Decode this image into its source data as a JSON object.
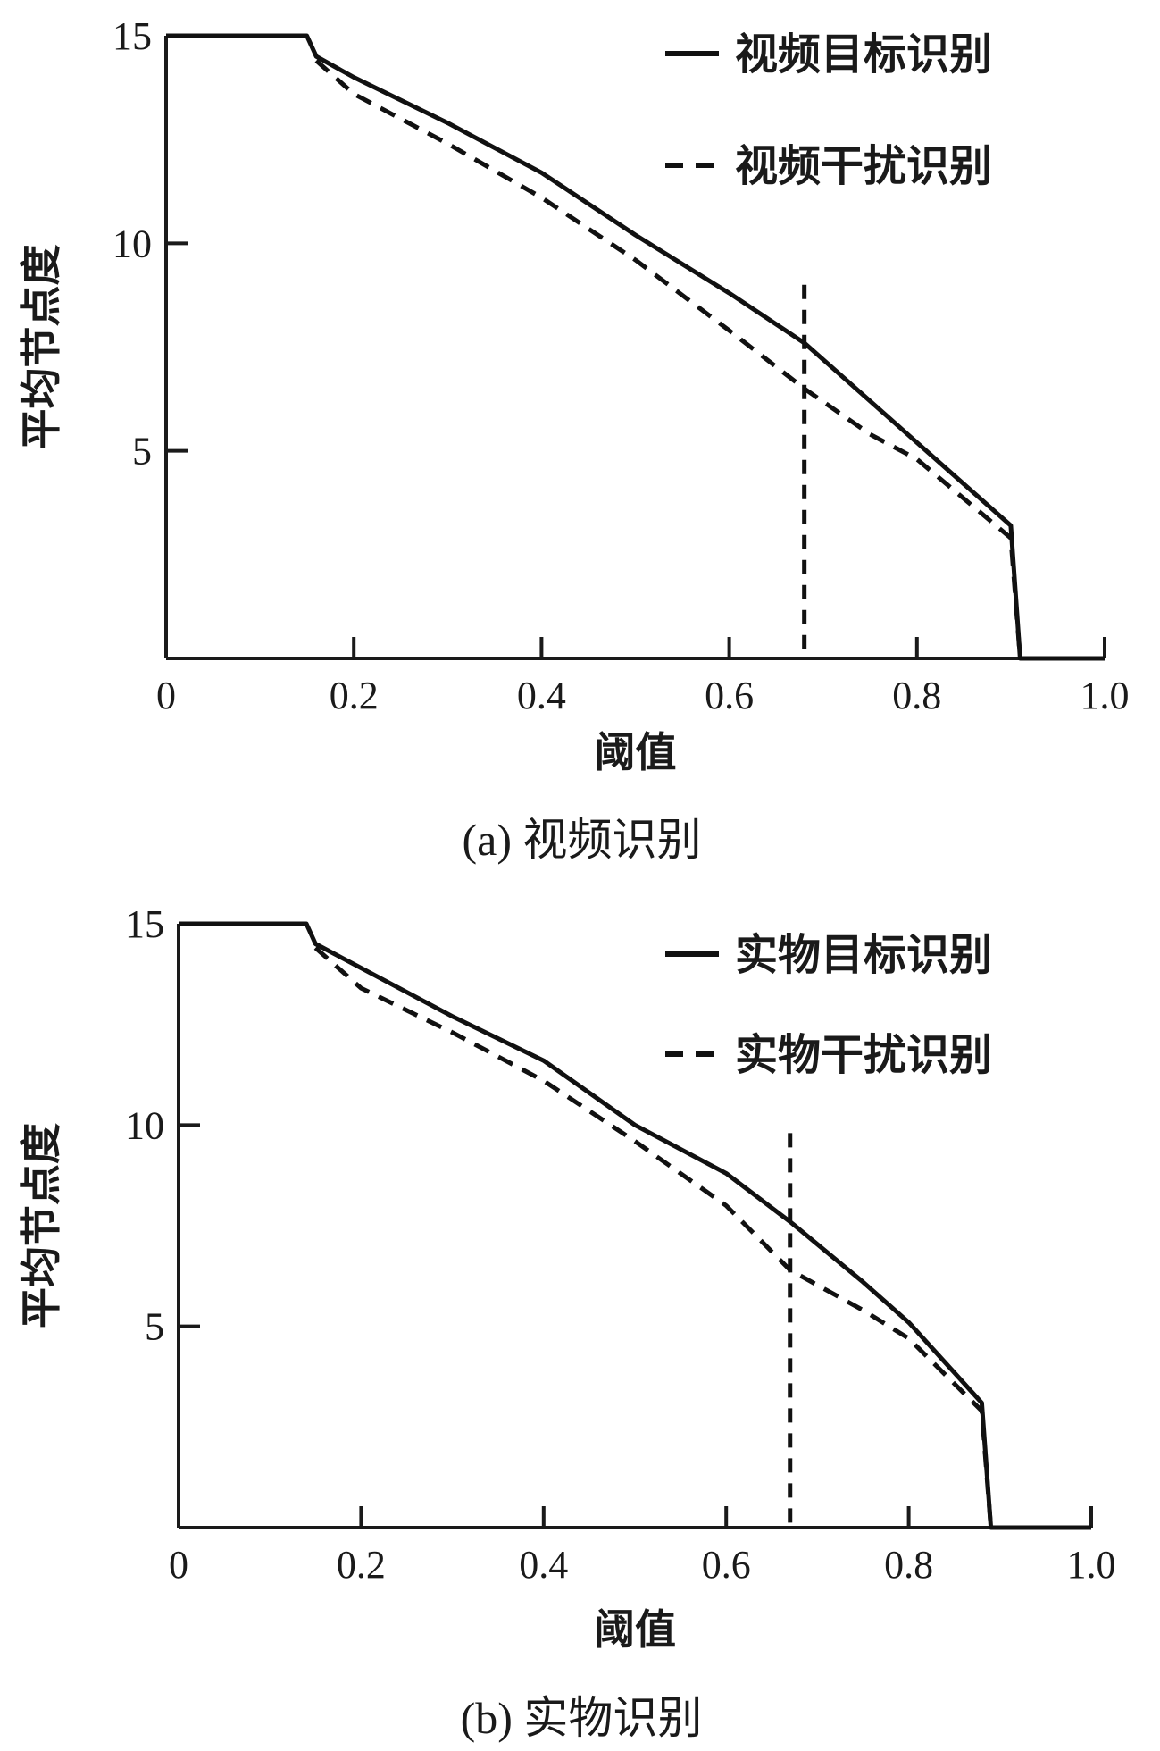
{
  "chart_data": [
    {
      "type": "line",
      "caption": "(a) 视频识别",
      "xlabel": "阈值",
      "ylabel": "平均节点度",
      "xlim": [
        0,
        1.0
      ],
      "ylim": [
        0,
        15
      ],
      "xticks": [
        "0",
        "0.2",
        "0.4",
        "0.6",
        "0.8",
        "1.0"
      ],
      "xtick_values": [
        0,
        0.2,
        0.4,
        0.6,
        0.8,
        1.0
      ],
      "yticks": [
        "5",
        "10",
        "15"
      ],
      "ytick_values": [
        5,
        10,
        15
      ],
      "grid": false,
      "legend_position": "top-right",
      "threshold_marker": {
        "x": 0.68,
        "y_max": 9.0,
        "style": "dashed"
      },
      "series": [
        {
          "name": "视频目标识别",
          "style": "solid",
          "x": [
            0,
            0.15,
            0.16,
            0.2,
            0.3,
            0.4,
            0.5,
            0.6,
            0.68,
            0.75,
            0.8,
            0.9,
            0.91,
            1.0
          ],
          "y": [
            15,
            15,
            14.5,
            14.0,
            12.9,
            11.7,
            10.2,
            8.8,
            7.6,
            6.2,
            5.2,
            3.2,
            0,
            0
          ]
        },
        {
          "name": "视频干扰识别",
          "style": "dashed",
          "x": [
            0.16,
            0.2,
            0.3,
            0.4,
            0.5,
            0.6,
            0.68,
            0.75,
            0.8,
            0.9,
            0.91
          ],
          "y": [
            14.4,
            13.6,
            12.4,
            11.1,
            9.6,
            7.9,
            6.5,
            5.4,
            4.8,
            2.9,
            0
          ]
        }
      ]
    },
    {
      "type": "line",
      "caption": "(b) 实物识别",
      "xlabel": "阈值",
      "ylabel": "平均节点度",
      "xlim": [
        0,
        1.0
      ],
      "ylim": [
        0,
        15
      ],
      "xticks": [
        "0",
        "0.2",
        "0.4",
        "0.6",
        "0.8",
        "1.0"
      ],
      "xtick_values": [
        0,
        0.2,
        0.4,
        0.6,
        0.8,
        1.0
      ],
      "yticks": [
        "5",
        "10",
        "15"
      ],
      "ytick_values": [
        5,
        10,
        15
      ],
      "grid": false,
      "legend_position": "top-right",
      "threshold_marker": {
        "x": 0.67,
        "y_max": 9.8,
        "style": "dashed"
      },
      "series": [
        {
          "name": "实物目标识别",
          "style": "solid",
          "x": [
            0,
            0.14,
            0.15,
            0.2,
            0.3,
            0.4,
            0.5,
            0.6,
            0.67,
            0.75,
            0.8,
            0.88,
            0.89,
            1.0
          ],
          "y": [
            15,
            15,
            14.5,
            13.9,
            12.7,
            11.6,
            10.0,
            8.8,
            7.6,
            6.1,
            5.1,
            3.1,
            0,
            0
          ]
        },
        {
          "name": "实物干扰识别",
          "style": "dashed",
          "x": [
            0.15,
            0.2,
            0.3,
            0.4,
            0.5,
            0.6,
            0.67,
            0.75,
            0.8,
            0.88,
            0.89
          ],
          "y": [
            14.4,
            13.4,
            12.3,
            11.1,
            9.6,
            8.0,
            6.4,
            5.4,
            4.7,
            2.9,
            0
          ]
        }
      ]
    }
  ]
}
